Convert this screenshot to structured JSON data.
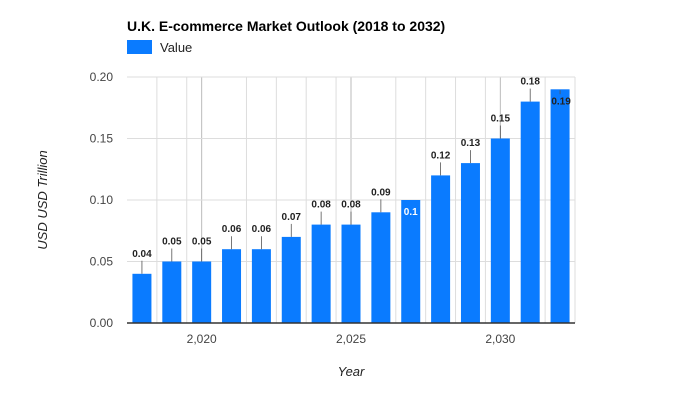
{
  "chart_data": {
    "type": "bar",
    "title": "U.K.  E-commerce Market Outlook (2018 to 2032)",
    "legend": {
      "label": "Value",
      "position": "top-left"
    },
    "xlabel": "Year",
    "ylabel": "USD USD Trillion",
    "x": [
      2018,
      2019,
      2020,
      2021,
      2022,
      2023,
      2024,
      2025,
      2026,
      2027,
      2028,
      2029,
      2030,
      2031,
      2032
    ],
    "x_tick_labels": [
      {
        "value": 2020,
        "label": "2,020"
      },
      {
        "value": 2025,
        "label": "2,025"
      },
      {
        "value": 2030,
        "label": "2,030"
      }
    ],
    "series": [
      {
        "name": "Value",
        "color": "#0a7bff",
        "values": [
          0.04,
          0.05,
          0.05,
          0.06,
          0.06,
          0.07,
          0.08,
          0.08,
          0.09,
          0.1,
          0.12,
          0.13,
          0.15,
          0.18,
          0.19
        ],
        "data_labels": [
          "0.04",
          "0.05",
          "0.05",
          "0.06",
          "0.06",
          "0.07",
          "0.08",
          "0.08",
          "0.09",
          "0.1",
          "0.12",
          "0.13",
          "0.15",
          "0.18",
          "0.19"
        ]
      }
    ],
    "y_ticks": [
      0,
      0.05,
      0.1,
      0.15,
      0.2
    ],
    "y_tick_labels": [
      "0.00",
      "0.05",
      "0.10",
      "0.15",
      "0.20"
    ],
    "ylim": [
      0,
      0.2
    ],
    "grid": true,
    "colors": {
      "bar": "#0a7bff",
      "grid": "#dddddd",
      "major_grid": "#bbbbbb",
      "axis": "#333333"
    }
  }
}
